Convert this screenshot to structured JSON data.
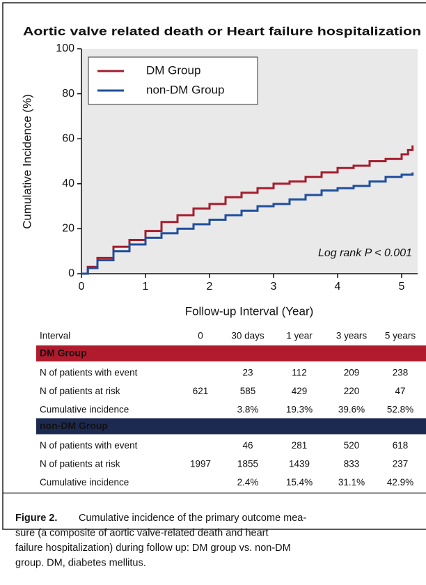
{
  "chart_data": {
    "type": "line",
    "title": "Aortic valve related death or Heart failure hospitalization",
    "x_label": "Follow-up Interval (Year)",
    "y_label": "Cumulative Incidence (%)",
    "annotation": "Log rank P < 0.001",
    "x": [
      0,
      0.1,
      0.25,
      0.5,
      0.75,
      1,
      1.25,
      1.5,
      1.75,
      2,
      2.25,
      2.5,
      2.75,
      3,
      3.25,
      3.5,
      3.75,
      4,
      4.25,
      4.5,
      4.75,
      5,
      5.1,
      5.17
    ],
    "series": [
      {
        "name": "DM Group",
        "color": "#a51d2d",
        "values": [
          0,
          3,
          7,
          12,
          15,
          19,
          23,
          26,
          29,
          31,
          34,
          36,
          38,
          40,
          41,
          43,
          45,
          47,
          48,
          50,
          51,
          53,
          55,
          57
        ]
      },
      {
        "name": "non-DM Group",
        "color": "#1f4e9c",
        "values": [
          0,
          2.5,
          6,
          10,
          13,
          16,
          18,
          20,
          22,
          24,
          26,
          28,
          30,
          31,
          33,
          35,
          37,
          38,
          39,
          41,
          43,
          44,
          44,
          45
        ]
      }
    ],
    "xlim": [
      0,
      5.25
    ],
    "xticks": [
      0,
      1,
      2,
      3,
      4,
      5
    ],
    "ylim": [
      0,
      100
    ],
    "yticks": [
      0,
      20,
      40,
      60,
      80,
      100
    ],
    "legend": "upper left",
    "step": true
  },
  "table": {
    "header": [
      "Interval",
      "0",
      "30 days",
      "1 year",
      "3 years",
      "5 years"
    ],
    "groups": [
      {
        "name": "DM Group",
        "color": "#b01c2e",
        "rows": [
          [
            "N of patients with event",
            null,
            "23",
            "112",
            "209",
            "238"
          ],
          [
            "N of patients at risk",
            "621",
            "585",
            "429",
            "220",
            "47"
          ],
          [
            "Cumulative incidence",
            null,
            "3.8%",
            "19.3%",
            "39.6%",
            "52.8%"
          ]
        ]
      },
      {
        "name": "non-DM Group",
        "color": "#1c2a52",
        "rows": [
          [
            "N of patients with event",
            null,
            "46",
            "281",
            "520",
            "618"
          ],
          [
            "N of patients at risk",
            "1997",
            "1855",
            "1439",
            "833",
            "237"
          ],
          [
            "Cumulative incidence",
            null,
            "2.4%",
            "15.4%",
            "31.1%",
            "42.9%"
          ]
        ]
      }
    ]
  },
  "caption": {
    "label": "Figure 2.",
    "lines": [
      "Cumulative incidence of the primary outcome mea-",
      "sure (a composite of aortic valve-related death and heart",
      "failure hospitalization) during follow up: DM group vs. non-DM",
      "group. DM, diabetes mellitus."
    ]
  }
}
